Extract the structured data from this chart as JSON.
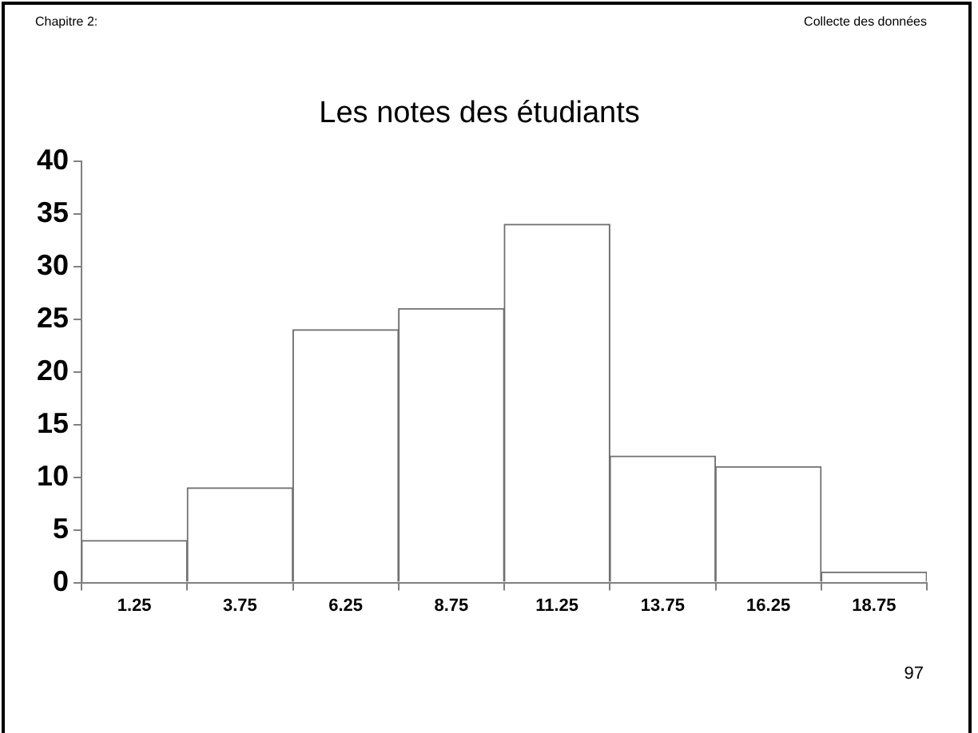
{
  "chart_data": {
    "type": "bar",
    "title": "Les notes des étudiants",
    "categories": [
      "1.25",
      "3.75",
      "6.25",
      "8.75",
      "11.25",
      "13.75",
      "16.25",
      "18.75"
    ],
    "values": [
      4,
      9,
      24,
      26,
      34,
      12,
      11,
      1
    ],
    "color": "#ffffff",
    "ylim": [
      0,
      40
    ],
    "yticks": [
      0,
      5,
      10,
      15,
      20,
      25,
      30,
      35,
      40
    ],
    "grid": false,
    "annotations": [
      "Chapitre 2:",
      "Collecte des données",
      "97"
    ]
  }
}
